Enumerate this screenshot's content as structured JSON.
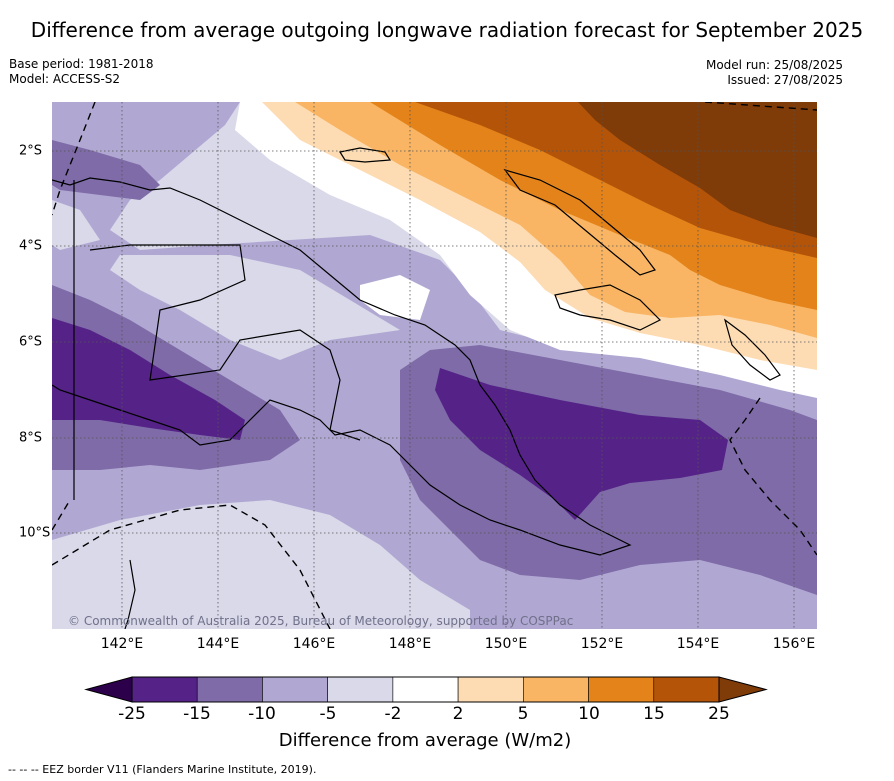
{
  "title": "Difference from average outgoing longwave radiation forecast for September 2025",
  "meta_left": [
    "Base period: 1981-2018",
    "Model: ACCESS-S2"
  ],
  "meta_right": [
    "Model run: 25/08/2025",
    "Issued: 27/08/2025"
  ],
  "copyright": "© Commonwealth of Australia 2025, Bureau of Meteorology, supported by COSPPac",
  "longitude_labels": [
    "142°E",
    "144°E",
    "146°E",
    "148°E",
    "150°E",
    "152°E",
    "154°E",
    "156°E"
  ],
  "latitude_labels": [
    "2°S",
    "4°S",
    "6°S",
    "8°S",
    "10°S"
  ],
  "colorbar": {
    "ticks": [
      "-25",
      "-15",
      "-10",
      "-5",
      "-2",
      "2",
      "5",
      "10",
      "15",
      "25"
    ],
    "colors": [
      "#552288",
      "#7e6ba8",
      "#b0a8d2",
      "#d9d9ea",
      "#ffffff",
      "#fddcb4",
      "#f9b563",
      "#e3831a",
      "#b45409",
      "#7f3b08"
    ],
    "under_color": "#2d004b",
    "over_color": "#7f3b08",
    "label": "Difference from average (W/m2)",
    "units": "W/m2"
  },
  "legend_footer": "-- --  -- EEZ border V11 (Flanders Marine Institute, 2019).",
  "map_region": {
    "lon_range": [
      140.5,
      156.5
    ],
    "lat_range": [
      -11.9,
      -1.0
    ]
  }
}
